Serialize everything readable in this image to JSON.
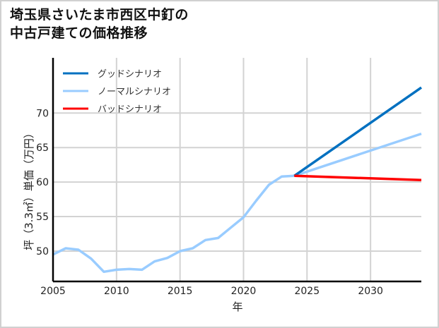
{
  "title_line1": "埼玉県さいたま市西区中釘の",
  "title_line2": "中古戸建ての価格推移",
  "chart_data": {
    "type": "line",
    "title": "埼玉県さいたま市西区中釘の中古戸建ての価格推移",
    "xlabel": "年",
    "ylabel": "坪（3.3㎡）単価（万円）",
    "xlim": [
      2005,
      2034
    ],
    "ylim": [
      45.6,
      78
    ],
    "x_ticks": [
      2005,
      2010,
      2015,
      2020,
      2025,
      2030
    ],
    "y_ticks": [
      50,
      55,
      60,
      65,
      70
    ],
    "grid": true,
    "legend_position": "upper left",
    "series": [
      {
        "name": "ノーマルシナリオ",
        "color": "#99ccff",
        "x": [
          2005,
          2006,
          2007,
          2008,
          2009,
          2010,
          2011,
          2012,
          2013,
          2014,
          2015,
          2016,
          2017,
          2018,
          2019,
          2020,
          2021,
          2022,
          2023,
          2024,
          2034
        ],
        "values": [
          49.5,
          50.4,
          50.2,
          48.9,
          47.0,
          47.3,
          47.4,
          47.3,
          48.5,
          49.0,
          50.0,
          50.4,
          51.6,
          51.9,
          53.4,
          54.9,
          57.3,
          59.6,
          60.8,
          60.9,
          67.0
        ]
      },
      {
        "name": "グッドシナリオ",
        "color": "#0070c0",
        "x": [
          2024,
          2034
        ],
        "values": [
          60.9,
          73.7
        ]
      },
      {
        "name": "バッドシナリオ",
        "color": "#ff0000",
        "x": [
          2024,
          2034
        ],
        "values": [
          60.9,
          60.3
        ]
      }
    ]
  },
  "legend": [
    {
      "label": "グッドシナリオ",
      "color": "#0070c0"
    },
    {
      "label": "ノーマルシナリオ",
      "color": "#99ccff"
    },
    {
      "label": "バッドシナリオ",
      "color": "#ff0000"
    }
  ]
}
